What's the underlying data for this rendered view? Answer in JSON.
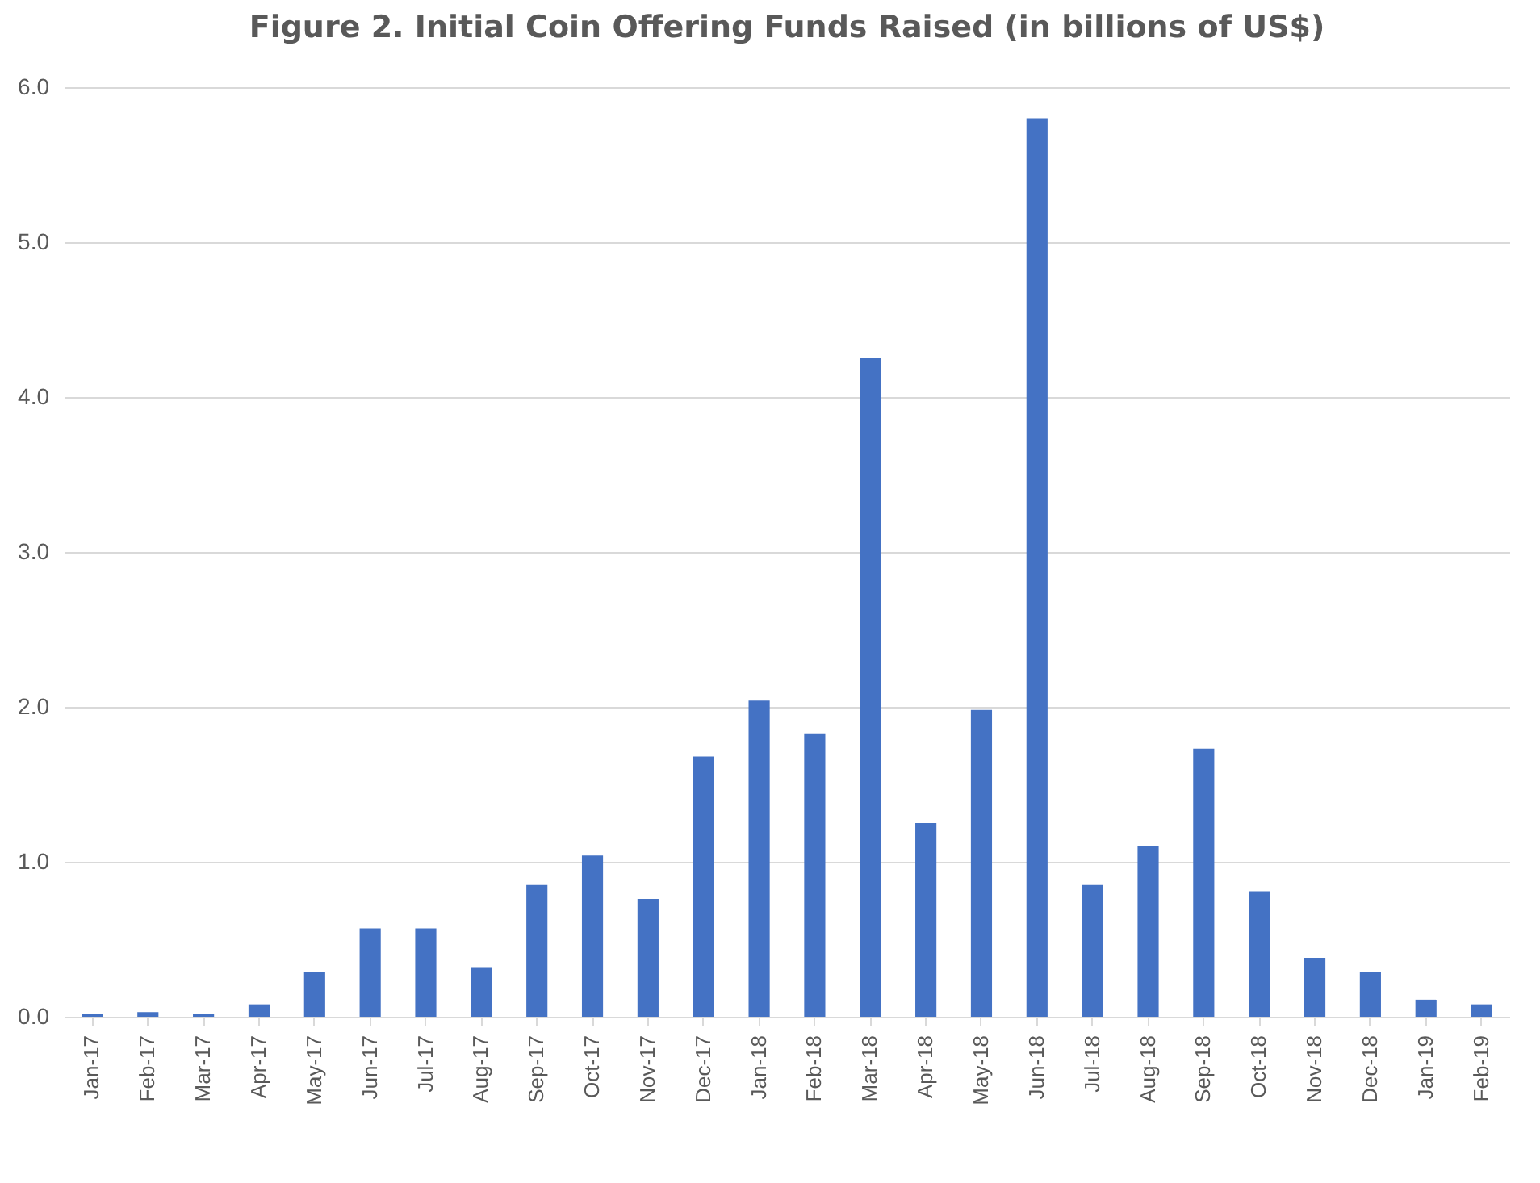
{
  "chart_data": {
    "type": "bar",
    "title": "Figure 2. Initial Coin Offering Funds Raised (in billions of US$)",
    "categories": [
      "Jan-17",
      "Feb-17",
      "Mar-17",
      "Apr-17",
      "May-17",
      "Jun-17",
      "Jul-17",
      "Aug-17",
      "Sep-17",
      "Oct-17",
      "Nov-17",
      "Dec-17",
      "Jan-18",
      "Feb-18",
      "Mar-18",
      "Apr-18",
      "May-18",
      "Jun-18",
      "Jul-18",
      "Aug-18",
      "Sep-18",
      "Oct-18",
      "Nov-18",
      "Dec-18",
      "Jan-19",
      "Feb-19"
    ],
    "values": [
      0.02,
      0.03,
      0.02,
      0.08,
      0.29,
      0.57,
      0.57,
      0.32,
      0.85,
      1.04,
      0.76,
      1.68,
      2.04,
      1.83,
      4.25,
      1.25,
      1.98,
      5.8,
      0.85,
      1.1,
      1.73,
      0.81,
      0.38,
      0.29,
      0.11,
      0.08
    ],
    "color": "#4472c4",
    "ylim": [
      0,
      6
    ],
    "yticks": [
      {
        "value": 0,
        "label": "0.0"
      },
      {
        "value": 1,
        "label": "1.0"
      },
      {
        "value": 2,
        "label": "2.0"
      },
      {
        "value": 3,
        "label": "3.0"
      },
      {
        "value": 4,
        "label": "4.0"
      },
      {
        "value": 5,
        "label": "5.0"
      },
      {
        "value": 6,
        "label": "6.0"
      }
    ],
    "grid": "y"
  }
}
